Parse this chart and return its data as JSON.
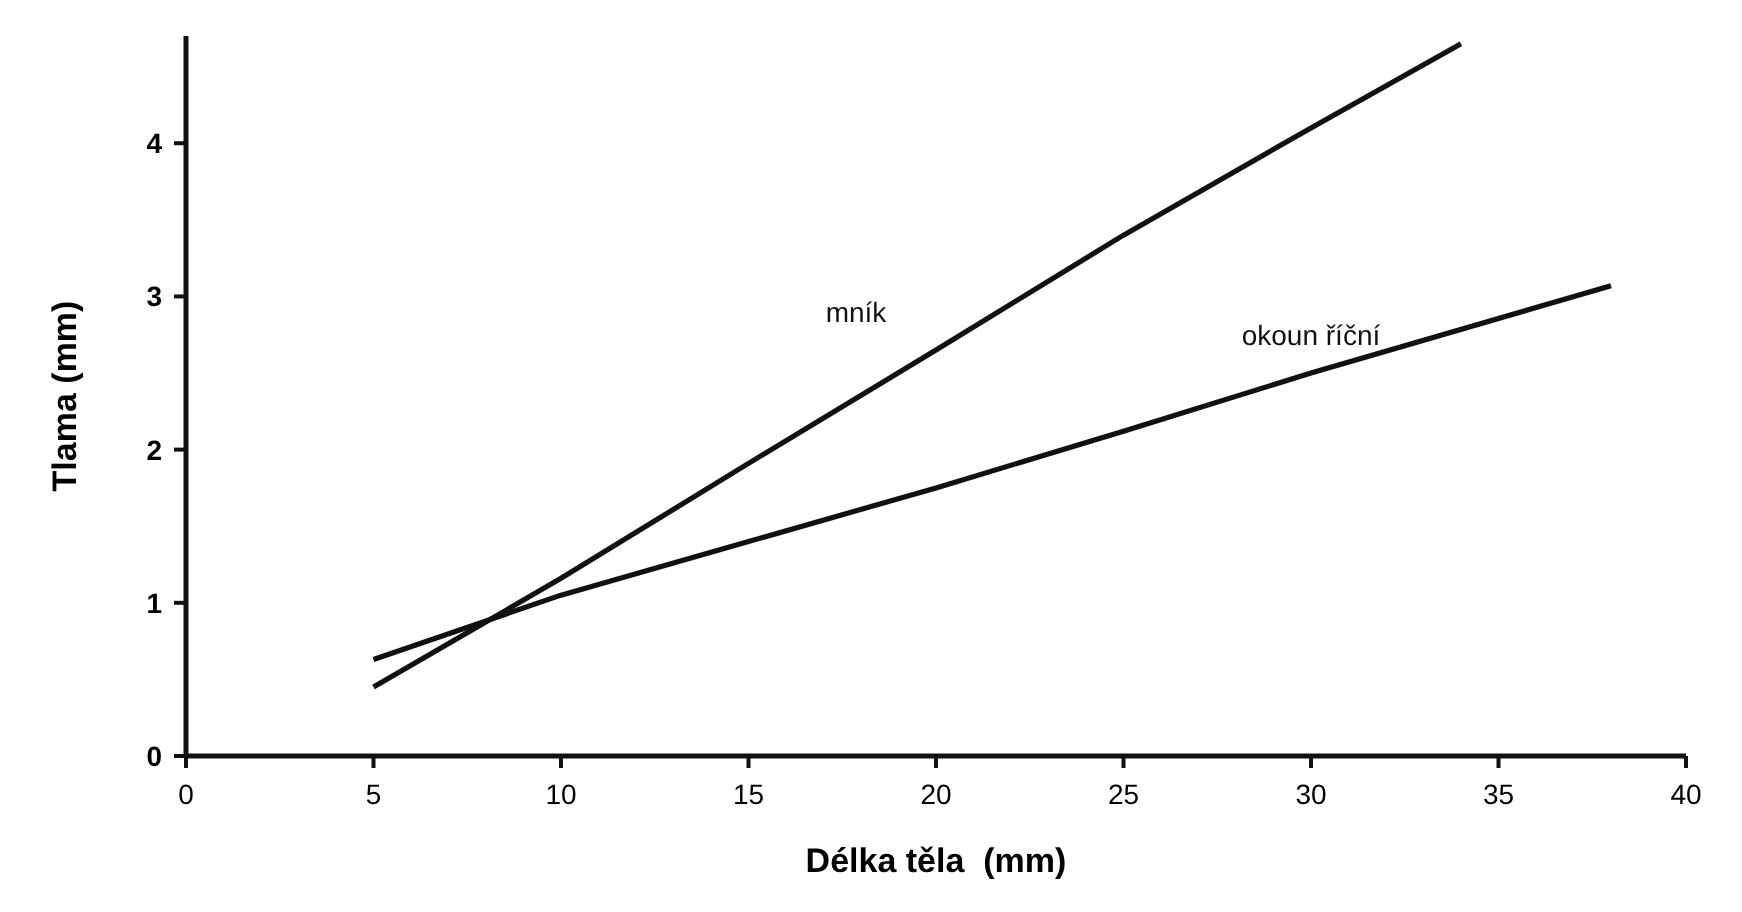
{
  "chart_data": {
    "type": "line",
    "xlabel": "Délka těla  (mm)",
    "ylabel": "Tlama (mm)",
    "xlim": [
      0,
      40
    ],
    "xticks": [
      0,
      5,
      10,
      15,
      20,
      25,
      30,
      35,
      40
    ],
    "ylim": [
      0,
      4.7
    ],
    "yticks": [
      0,
      1,
      2,
      3,
      4
    ],
    "grid": false,
    "legend": false,
    "marker": "none",
    "line_style": "solid",
    "series": [
      {
        "name": "mník",
        "color": "#111111",
        "x": [
          5,
          10,
          15,
          20,
          25,
          30,
          34
        ],
        "values": [
          0.45,
          1.16,
          1.91,
          2.65,
          3.4,
          4.1,
          4.65
        ]
      },
      {
        "name": "okoun říční",
        "color": "#111111",
        "x": [
          5,
          10,
          15,
          20,
          25,
          30,
          38
        ],
        "values": [
          0.63,
          1.05,
          1.4,
          1.75,
          2.12,
          2.5,
          3.07
        ]
      }
    ]
  }
}
